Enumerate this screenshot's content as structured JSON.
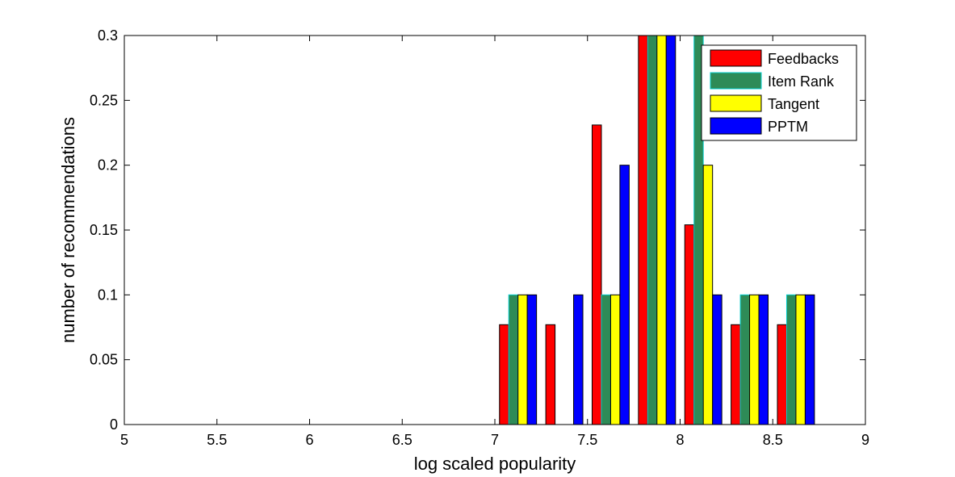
{
  "chart_data": {
    "type": "bar",
    "xlabel": "log scaled popularity",
    "ylabel": "number of recommendations",
    "xlim": [
      5,
      9
    ],
    "ylim": [
      0,
      0.3
    ],
    "xticks": [
      "5",
      "5.5",
      "6",
      "6.5",
      "7",
      "7.5",
      "8",
      "8.5",
      "9"
    ],
    "yticks": [
      "0",
      "0.05",
      "0.1",
      "0.15",
      "0.2",
      "0.25",
      "0.3"
    ],
    "grid": false,
    "legend_position": "top-right",
    "bin_centers": [
      5.125,
      5.375,
      5.625,
      5.875,
      6.125,
      6.375,
      6.625,
      6.875,
      7.125,
      7.375,
      7.625,
      7.875,
      8.125,
      8.375,
      8.625,
      8.875
    ],
    "series": [
      {
        "name": "Feedbacks",
        "color": "#ff0000",
        "values": [
          0,
          0,
          0,
          0,
          0,
          0,
          0,
          0,
          0.077,
          0.077,
          0.231,
          0.3,
          0.154,
          0.077,
          0.077,
          0
        ]
      },
      {
        "name": "Item Rank",
        "color": "#2e8b57",
        "edge": "#00cccc",
        "values": [
          0,
          0,
          0,
          0,
          0,
          0,
          0,
          0,
          0.1,
          0,
          0.1,
          0.3,
          0.3,
          0.1,
          0.1,
          0
        ]
      },
      {
        "name": "Tangent",
        "color": "#ffff00",
        "values": [
          0,
          0,
          0,
          0,
          0,
          0,
          0,
          0,
          0.1,
          0,
          0.1,
          0.3,
          0.2,
          0.1,
          0.1,
          0
        ]
      },
      {
        "name": "PPTM",
        "color": "#0000ff",
        "values": [
          0,
          0,
          0,
          0,
          0,
          0,
          0,
          0,
          0.1,
          0.1,
          0.2,
          0.3,
          0.1,
          0.1,
          0.1,
          0
        ]
      }
    ]
  }
}
